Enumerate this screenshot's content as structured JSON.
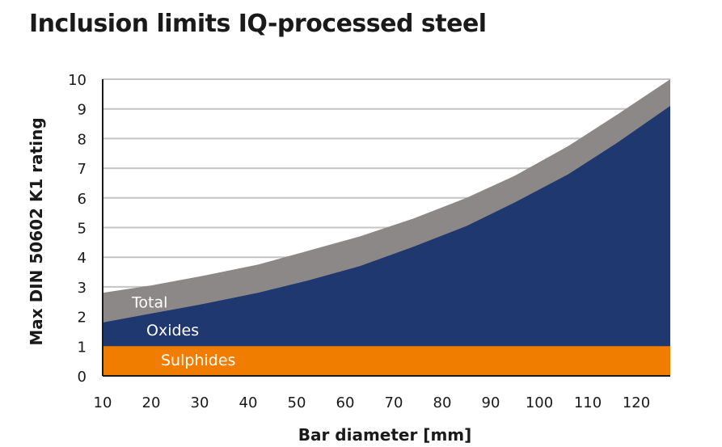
{
  "chart_data": {
    "type": "area",
    "title": "Inclusion limits IQ-processed steel",
    "xlabel": "Bar diameter [mm]",
    "ylabel": "Max DIN 50602 K1 rating",
    "xlim": [
      10,
      127
    ],
    "ylim": [
      0,
      10
    ],
    "xticks": [
      10,
      20,
      30,
      40,
      50,
      60,
      70,
      80,
      90,
      100,
      110,
      120
    ],
    "yticks": [
      0,
      1,
      2,
      3,
      4,
      5,
      6,
      7,
      8,
      9,
      10
    ],
    "grid": "horizontal",
    "stacked": false,
    "series": [
      {
        "name": "Total",
        "color": "#8c8888",
        "x": [
          10,
          20,
          30,
          42,
          52,
          63,
          74,
          85,
          95,
          106,
          116,
          127
        ],
        "y": [
          2.8,
          3.05,
          3.35,
          3.75,
          4.2,
          4.7,
          5.3,
          6.0,
          6.75,
          7.75,
          8.8,
          10.0
        ]
      },
      {
        "name": "Oxides",
        "color": "#1f386f",
        "x": [
          10,
          20,
          30,
          42,
          52,
          63,
          74,
          85,
          95,
          106,
          116,
          127
        ],
        "y": [
          1.8,
          2.1,
          2.4,
          2.8,
          3.2,
          3.7,
          4.35,
          5.05,
          5.85,
          6.8,
          7.85,
          9.1
        ]
      },
      {
        "name": "Sulphides",
        "color": "#f07d00",
        "x": [
          10,
          127
        ],
        "y": [
          1.0,
          1.0
        ]
      }
    ],
    "label_positions": {
      "Total": [
        16,
        2.5
      ],
      "Oxides": [
        19,
        1.55
      ],
      "Sulphides": [
        22,
        0.55
      ]
    }
  }
}
